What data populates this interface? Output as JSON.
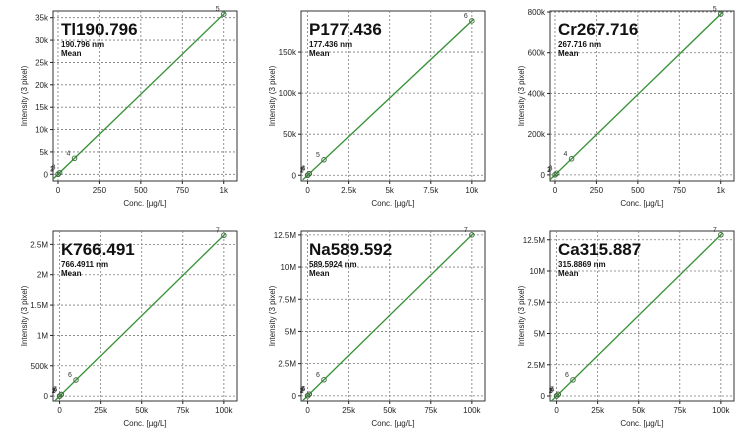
{
  "chart_data": [
    {
      "type": "scatter",
      "title": "Tl190.796",
      "subtitle": "190.796 nm",
      "subtitle2": "Mean",
      "xlabel": "Conc. [µg/L]",
      "ylabel": "Intensity (3 pixel)",
      "xlim": [
        -30,
        1080
      ],
      "ylim": [
        -1500,
        36500
      ],
      "xticks": [
        0,
        250,
        500,
        750,
        1000
      ],
      "xticklabels": [
        "0",
        "250",
        "500",
        "750",
        "1k"
      ],
      "yticks": [
        0,
        5000,
        10000,
        15000,
        20000,
        25000,
        30000,
        35000
      ],
      "yticklabels": [
        "0",
        "5k",
        "10k",
        "15k",
        "20k",
        "25k",
        "30k",
        "35k"
      ],
      "points": [
        {
          "label": "1",
          "x": 0,
          "y": 0
        },
        {
          "label": "2",
          "x": 1,
          "y": 36
        },
        {
          "label": "3",
          "x": 10,
          "y": 358
        },
        {
          "label": "4",
          "x": 100,
          "y": 3580
        },
        {
          "label": "5",
          "x": 1000,
          "y": 35800
        }
      ],
      "fit": {
        "x": [
          -30,
          1010
        ],
        "y": [
          -1070,
          36160
        ]
      }
    },
    {
      "type": "scatter",
      "title": "P177.436",
      "subtitle": "177.436 nm",
      "subtitle2": "Mean",
      "xlabel": "Conc. [µg/L]",
      "ylabel": "Intensity (3 pixel)",
      "xlim": [
        -400,
        10800
      ],
      "ylim": [
        -7000,
        200000
      ],
      "xticks": [
        0,
        2500,
        5000,
        7500,
        10000
      ],
      "xticklabels": [
        "0",
        "2.5k",
        "5k",
        "7.5k",
        "10k"
      ],
      "yticks": [
        0,
        50000,
        100000,
        150000
      ],
      "yticklabels": [
        "0",
        "50k",
        "100k",
        "150k"
      ],
      "points": [
        {
          "label": "1",
          "x": 0,
          "y": 0
        },
        {
          "label": "2",
          "x": 10,
          "y": 188
        },
        {
          "label": "3",
          "x": 100,
          "y": 1880
        },
        {
          "label": "4",
          "x": 100,
          "y": 1880
        },
        {
          "label": "5",
          "x": 1000,
          "y": 18800
        },
        {
          "label": "6",
          "x": 10000,
          "y": 188000
        }
      ],
      "fit": {
        "x": [
          -300,
          10100
        ],
        "y": [
          -5640,
          189900
        ]
      }
    },
    {
      "type": "scatter",
      "title": "Cr267.716",
      "subtitle": "267.716 nm",
      "subtitle2": "Mean",
      "xlabel": "Conc. [µg/L]",
      "ylabel": "Intensity (3 pixel)",
      "xlim": [
        -30,
        1080
      ],
      "ylim": [
        -30000,
        805000
      ],
      "xticks": [
        0,
        250,
        500,
        750,
        1000
      ],
      "xticklabels": [
        "0",
        "250",
        "500",
        "750",
        "1k"
      ],
      "yticks": [
        0,
        200000,
        400000,
        600000,
        800000
      ],
      "yticklabels": [
        "0",
        "200k",
        "400k",
        "600k",
        "800k"
      ],
      "points": [
        {
          "label": "1",
          "x": 0,
          "y": 0
        },
        {
          "label": "2",
          "x": 1,
          "y": 790
        },
        {
          "label": "3",
          "x": 10,
          "y": 7900
        },
        {
          "label": "4",
          "x": 100,
          "y": 79000
        },
        {
          "label": "5",
          "x": 1000,
          "y": 790000
        }
      ],
      "fit": {
        "x": [
          -30,
          1010
        ],
        "y": [
          -23700,
          797900
        ]
      }
    },
    {
      "type": "scatter",
      "title": "K766.491",
      "subtitle": "766.4911 nm",
      "subtitle2": "Mean",
      "xlabel": "Conc. [µg/L]",
      "ylabel": "Intensity (3 pixel)",
      "xlim": [
        -4000,
        108000
      ],
      "ylim": [
        -80000,
        2720000
      ],
      "xticks": [
        0,
        25000,
        50000,
        75000,
        100000
      ],
      "xticklabels": [
        "0",
        "25k",
        "50k",
        "75k",
        "100k"
      ],
      "yticks": [
        0,
        500000,
        1000000,
        1500000,
        2000000,
        2500000
      ],
      "yticklabels": [
        "0",
        "500k",
        "1M",
        "1.5M",
        "2M",
        "2.5M"
      ],
      "points": [
        {
          "label": "1",
          "x": 0,
          "y": 0
        },
        {
          "label": "2",
          "x": 10,
          "y": 265
        },
        {
          "label": "3",
          "x": 100,
          "y": 2650
        },
        {
          "label": "4",
          "x": 1000,
          "y": 26500
        },
        {
          "label": "5",
          "x": 1000,
          "y": 26500
        },
        {
          "label": "6",
          "x": 10000,
          "y": 265000
        },
        {
          "label": "7",
          "x": 100000,
          "y": 2650000
        }
      ],
      "fit": {
        "x": [
          -3000,
          101000
        ],
        "y": [
          -79500,
          2676500
        ]
      }
    },
    {
      "type": "scatter",
      "title": "Na589.592",
      "subtitle": "589.5924 nm",
      "subtitle2": "Mean",
      "xlabel": "Conc. [µg/L]",
      "ylabel": "Intensity (3 pixel)",
      "xlim": [
        -4000,
        108000
      ],
      "ylim": [
        -400000,
        12800000
      ],
      "xticks": [
        0,
        25000,
        50000,
        75000,
        100000
      ],
      "xticklabels": [
        "0",
        "25k",
        "50k",
        "75k",
        "100k"
      ],
      "yticks": [
        0,
        2500000,
        5000000,
        7500000,
        10000000,
        12500000
      ],
      "yticklabels": [
        "0",
        "2.5M",
        "5M",
        "7.5M",
        "10M",
        "12.5M"
      ],
      "points": [
        {
          "label": "1",
          "x": 0,
          "y": 0
        },
        {
          "label": "2",
          "x": 10,
          "y": 1250
        },
        {
          "label": "3",
          "x": 100,
          "y": 12500
        },
        {
          "label": "4",
          "x": 1000,
          "y": 125000
        },
        {
          "label": "5",
          "x": 1000,
          "y": 125000
        },
        {
          "label": "6",
          "x": 10000,
          "y": 1250000
        },
        {
          "label": "7",
          "x": 100000,
          "y": 12500000
        }
      ],
      "fit": {
        "x": [
          -3000,
          101000
        ],
        "y": [
          -375000,
          12625000
        ]
      }
    },
    {
      "type": "scatter",
      "title": "Ca315.887",
      "subtitle": "315.8869 nm",
      "subtitle2": "Mean",
      "xlabel": "Conc. [µg/L]",
      "ylabel": "Intensity (3 pixel)",
      "xlim": [
        -4000,
        108000
      ],
      "ylim": [
        -400000,
        13200000
      ],
      "xticks": [
        0,
        25000,
        50000,
        75000,
        100000
      ],
      "xticklabels": [
        "0",
        "25k",
        "50k",
        "75k",
        "100k"
      ],
      "yticks": [
        0,
        2500000,
        5000000,
        7500000,
        10000000,
        12500000
      ],
      "yticklabels": [
        "0",
        "2.5M",
        "5M",
        "7.5M",
        "10M",
        "12.5M"
      ],
      "points": [
        {
          "label": "1",
          "x": 0,
          "y": 0
        },
        {
          "label": "2",
          "x": 10,
          "y": 1290
        },
        {
          "label": "3",
          "x": 100,
          "y": 12900
        },
        {
          "label": "4",
          "x": 1000,
          "y": 129000
        },
        {
          "label": "5",
          "x": 1000,
          "y": 129000
        },
        {
          "label": "6",
          "x": 10000,
          "y": 1290000
        },
        {
          "label": "7",
          "x": 100000,
          "y": 12900000
        }
      ],
      "fit": {
        "x": [
          -3000,
          101000
        ],
        "y": [
          -387000,
          13029000
        ]
      }
    }
  ]
}
